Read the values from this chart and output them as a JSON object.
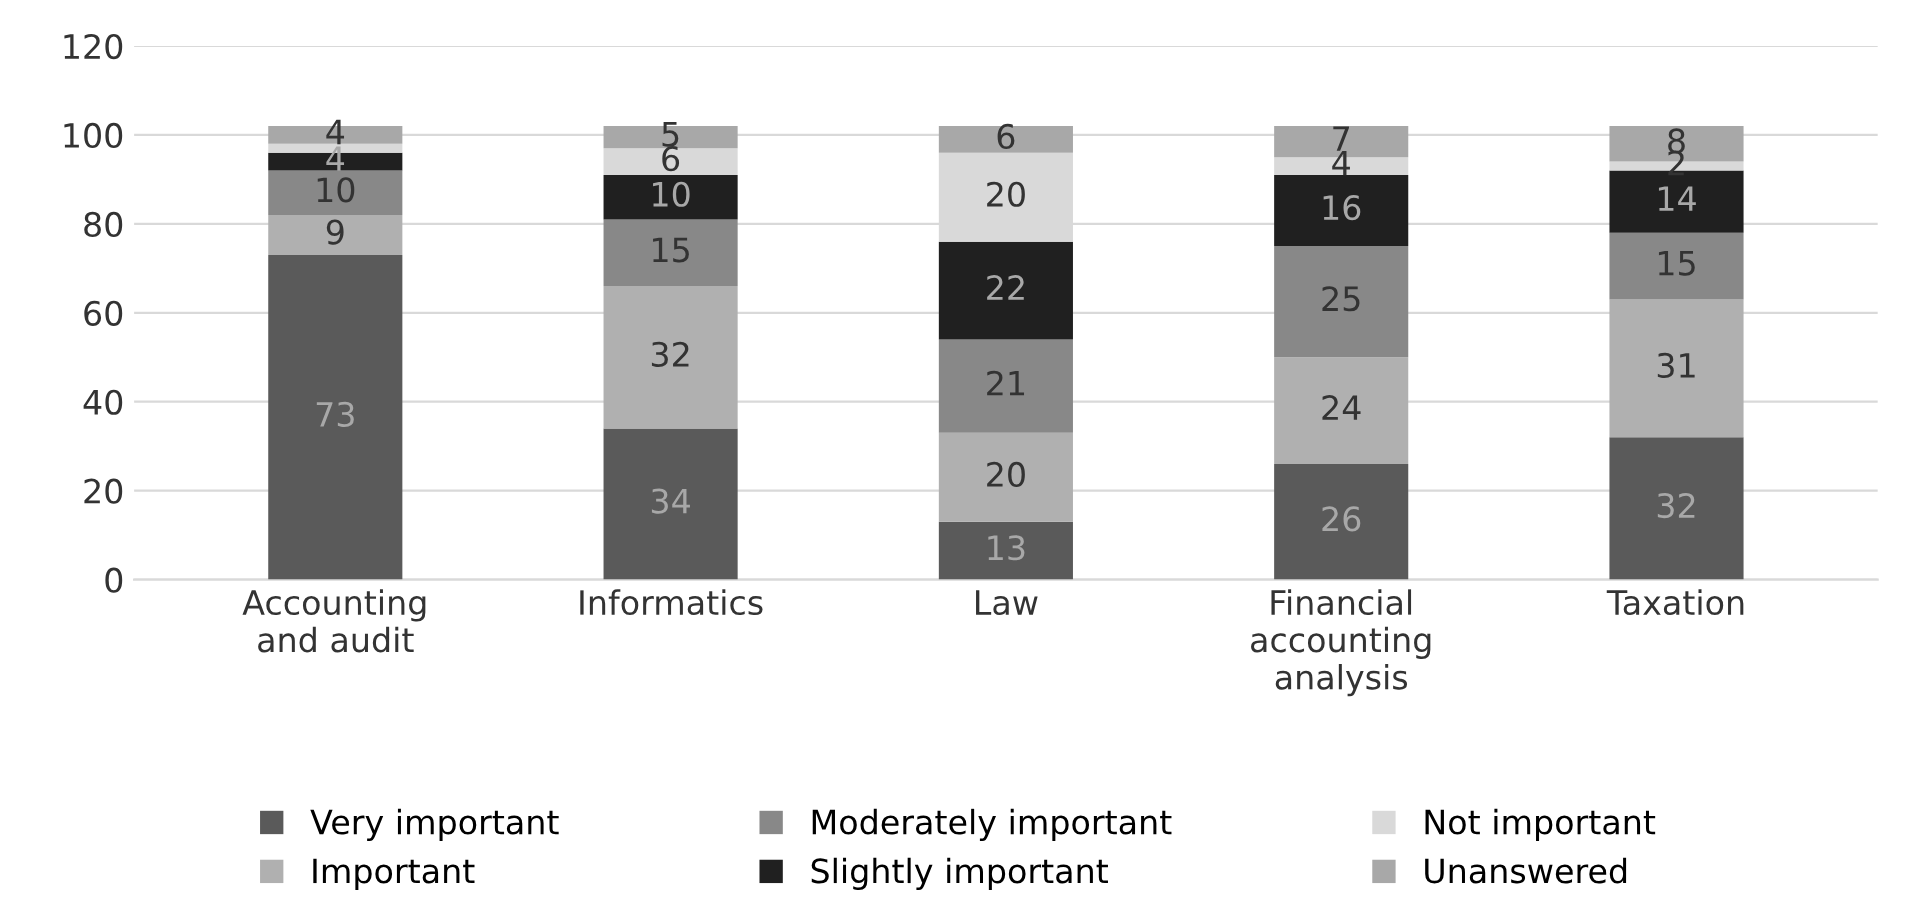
{
  "chart_data": {
    "type": "bar",
    "stacked": true,
    "categories": [
      "Accounting and audit",
      "Informatics",
      "Law",
      "Financial accounting analysis",
      "Taxation"
    ],
    "series": [
      {
        "name": "Very important",
        "color": "#5a5a5a",
        "values": [
          73,
          34,
          13,
          26,
          32
        ]
      },
      {
        "name": "Important",
        "color": "#b0b0b0",
        "values": [
          9,
          32,
          20,
          24,
          31
        ]
      },
      {
        "name": "Moderately important",
        "color": "#888888",
        "values": [
          10,
          15,
          21,
          25,
          15
        ]
      },
      {
        "name": "Slightly important",
        "color": "#202020",
        "values": [
          4,
          10,
          22,
          16,
          14
        ]
      },
      {
        "name": "Not important",
        "color": "#d9d9d9",
        "values": [
          2,
          6,
          20,
          4,
          2
        ],
        "value_labels": [
          null,
          "6",
          "20",
          "4",
          "2"
        ]
      },
      {
        "name": "Unanswered",
        "color": "#a8a8a8",
        "values": [
          4,
          5,
          6,
          7,
          8
        ]
      }
    ],
    "ylim": [
      0,
      120
    ],
    "yticks": [
      0,
      20,
      40,
      60,
      80,
      100,
      120
    ],
    "grid": "y",
    "legend": "bottom",
    "data_labels": true
  }
}
